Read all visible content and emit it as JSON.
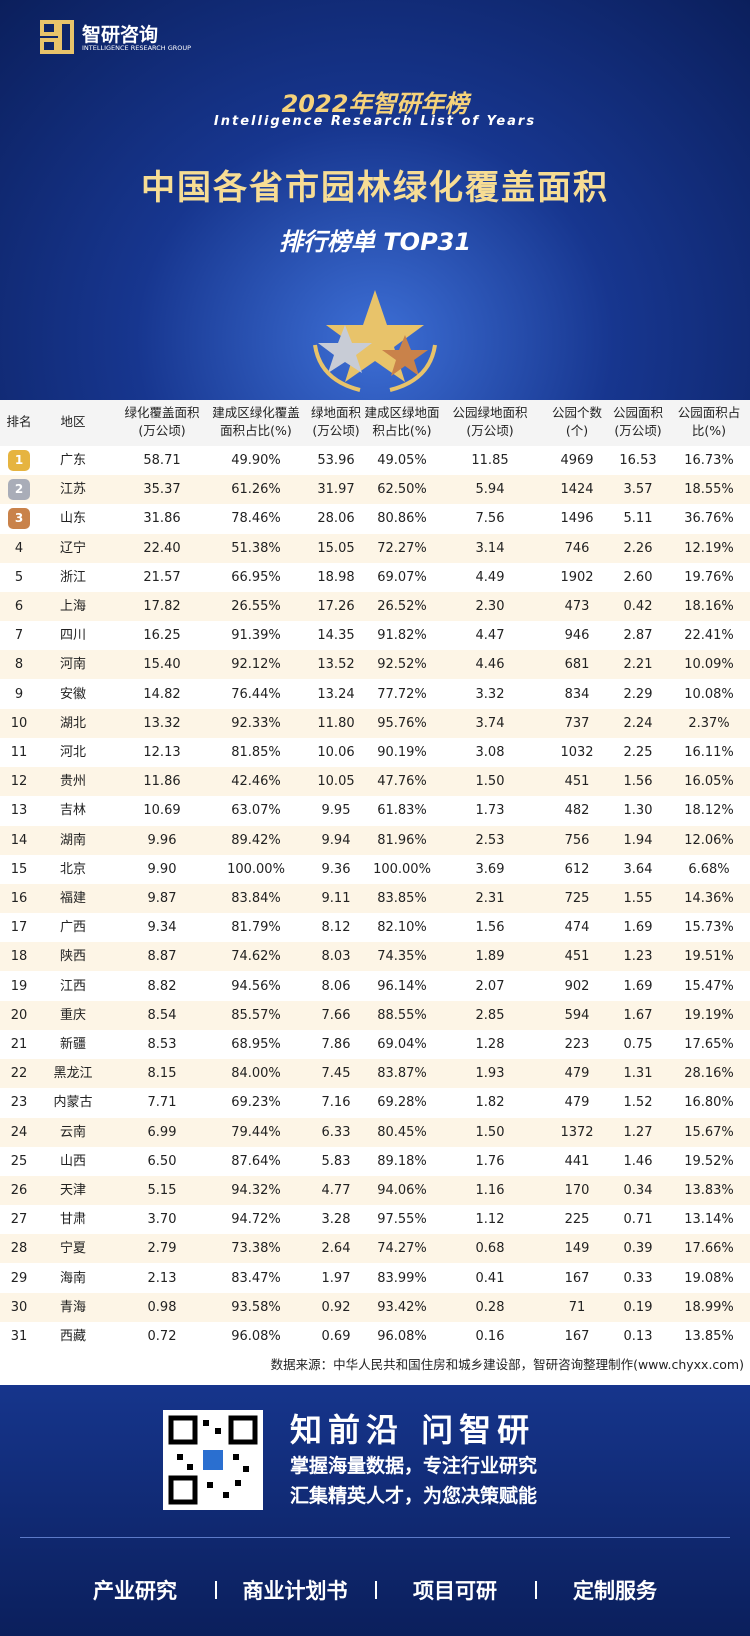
{
  "header": {
    "logo": "智研咨询",
    "logo_sub": "INTELLIGENCE RESEARCH GROUP",
    "year_title": "2022年智研年榜",
    "year_title_en": "Intelligence Research List of Years",
    "title": "中国各省市园林绿化覆盖面积",
    "subtitle": "排行榜单 TOP31"
  },
  "table": {
    "columns": [
      [
        "排名"
      ],
      [
        "地区"
      ],
      [
        "绿化覆盖面积",
        "(万公顷)"
      ],
      [
        "建成区绿化覆盖",
        "面积占比(%)"
      ],
      [
        "绿地面积",
        "(万公顷)"
      ],
      [
        "建成区绿地面",
        "积占比(%)"
      ],
      [
        "公园绿地面积",
        "(万公顷)"
      ],
      [
        "公园个数",
        "(个)"
      ],
      [
        "公园面积",
        "(万公顷)"
      ],
      [
        "公园面积占",
        "比(%)"
      ]
    ],
    "rows": [
      [
        "1",
        "广东",
        "58.71",
        "49.90%",
        "53.96",
        "49.05%",
        "11.85",
        "4969",
        "16.53",
        "16.73%"
      ],
      [
        "2",
        "江苏",
        "35.37",
        "61.26%",
        "31.97",
        "62.50%",
        "5.94",
        "1424",
        "3.57",
        "18.55%"
      ],
      [
        "3",
        "山东",
        "31.86",
        "78.46%",
        "28.06",
        "80.86%",
        "7.56",
        "1496",
        "5.11",
        "36.76%"
      ],
      [
        "4",
        "辽宁",
        "22.40",
        "51.38%",
        "15.05",
        "72.27%",
        "3.14",
        "746",
        "2.26",
        "12.19%"
      ],
      [
        "5",
        "浙江",
        "21.57",
        "66.95%",
        "18.98",
        "69.07%",
        "4.49",
        "1902",
        "2.60",
        "19.76%"
      ],
      [
        "6",
        "上海",
        "17.82",
        "26.55%",
        "17.26",
        "26.52%",
        "2.30",
        "473",
        "0.42",
        "18.16%"
      ],
      [
        "7",
        "四川",
        "16.25",
        "91.39%",
        "14.35",
        "91.82%",
        "4.47",
        "946",
        "2.87",
        "22.41%"
      ],
      [
        "8",
        "河南",
        "15.40",
        "92.12%",
        "13.52",
        "92.52%",
        "4.46",
        "681",
        "2.21",
        "10.09%"
      ],
      [
        "9",
        "安徽",
        "14.82",
        "76.44%",
        "13.24",
        "77.72%",
        "3.32",
        "834",
        "2.29",
        "10.08%"
      ],
      [
        "10",
        "湖北",
        "13.32",
        "92.33%",
        "11.80",
        "95.76%",
        "3.74",
        "737",
        "2.24",
        "2.37%"
      ],
      [
        "11",
        "河北",
        "12.13",
        "81.85%",
        "10.06",
        "90.19%",
        "3.08",
        "1032",
        "2.25",
        "16.11%"
      ],
      [
        "12",
        "贵州",
        "11.86",
        "42.46%",
        "10.05",
        "47.76%",
        "1.50",
        "451",
        "1.56",
        "16.05%"
      ],
      [
        "13",
        "吉林",
        "10.69",
        "63.07%",
        "9.95",
        "61.83%",
        "1.73",
        "482",
        "1.30",
        "18.12%"
      ],
      [
        "14",
        "湖南",
        "9.96",
        "89.42%",
        "9.94",
        "81.96%",
        "2.53",
        "756",
        "1.94",
        "12.06%"
      ],
      [
        "15",
        "北京",
        "9.90",
        "100.00%",
        "9.36",
        "100.00%",
        "3.69",
        "612",
        "3.64",
        "6.68%"
      ],
      [
        "16",
        "福建",
        "9.87",
        "83.84%",
        "9.11",
        "83.85%",
        "2.31",
        "725",
        "1.55",
        "14.36%"
      ],
      [
        "17",
        "广西",
        "9.34",
        "81.79%",
        "8.12",
        "82.10%",
        "1.56",
        "474",
        "1.69",
        "15.73%"
      ],
      [
        "18",
        "陕西",
        "8.87",
        "74.62%",
        "8.03",
        "74.35%",
        "1.89",
        "451",
        "1.23",
        "19.51%"
      ],
      [
        "19",
        "江西",
        "8.82",
        "94.56%",
        "8.06",
        "96.14%",
        "2.07",
        "902",
        "1.69",
        "15.47%"
      ],
      [
        "20",
        "重庆",
        "8.54",
        "85.57%",
        "7.66",
        "88.55%",
        "2.85",
        "594",
        "1.67",
        "19.19%"
      ],
      [
        "21",
        "新疆",
        "8.53",
        "68.95%",
        "7.86",
        "69.04%",
        "1.28",
        "223",
        "0.75",
        "17.65%"
      ],
      [
        "22",
        "黑龙江",
        "8.15",
        "84.00%",
        "7.45",
        "83.87%",
        "1.93",
        "479",
        "1.31",
        "28.16%"
      ],
      [
        "23",
        "内蒙古",
        "7.71",
        "69.23%",
        "7.16",
        "69.28%",
        "1.82",
        "479",
        "1.52",
        "16.80%"
      ],
      [
        "24",
        "云南",
        "6.99",
        "79.44%",
        "6.33",
        "80.45%",
        "1.50",
        "1372",
        "1.27",
        "15.67%"
      ],
      [
        "25",
        "山西",
        "6.50",
        "87.64%",
        "5.83",
        "89.18%",
        "1.76",
        "441",
        "1.46",
        "19.52%"
      ],
      [
        "26",
        "天津",
        "5.15",
        "94.32%",
        "4.77",
        "94.06%",
        "1.16",
        "170",
        "0.34",
        "13.83%"
      ],
      [
        "27",
        "甘肃",
        "3.70",
        "94.72%",
        "3.28",
        "97.55%",
        "1.12",
        "225",
        "0.71",
        "13.14%"
      ],
      [
        "28",
        "宁夏",
        "2.79",
        "73.38%",
        "2.64",
        "74.27%",
        "0.68",
        "149",
        "0.39",
        "17.66%"
      ],
      [
        "29",
        "海南",
        "2.13",
        "83.47%",
        "1.97",
        "83.99%",
        "0.41",
        "167",
        "0.33",
        "19.08%"
      ],
      [
        "30",
        "青海",
        "0.98",
        "93.58%",
        "0.92",
        "93.42%",
        "0.28",
        "71",
        "0.19",
        "18.99%"
      ],
      [
        "31",
        "西藏",
        "0.72",
        "96.08%",
        "0.69",
        "96.08%",
        "0.16",
        "167",
        "0.13",
        "13.85%"
      ]
    ]
  },
  "source": "数据来源：中华人民共和国住房和城乡建设部，智研咨询整理制作(www.chyxx.com)",
  "footer": {
    "slogan": "知前沿 问智研",
    "line1": "掌握海量数据，专注行业研究",
    "line2": "汇集精英人才，为您决策赋能",
    "services": [
      "产业研究",
      "商业计划书",
      "项目可研",
      "定制服务"
    ]
  }
}
